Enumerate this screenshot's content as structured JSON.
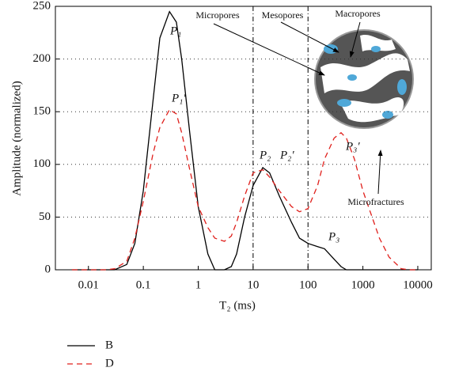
{
  "chart_data": {
    "type": "line",
    "xlabel": "T₂ (ms)",
    "ylabel": "Amplitude (normalized)",
    "xscale": "log",
    "xlim": [
      0.0025,
      17600
    ],
    "ylim": [
      0,
      250
    ],
    "xticks": [
      0.01,
      0.1,
      1,
      10,
      100,
      1000,
      10000
    ],
    "yticks": [
      0,
      50,
      100,
      150,
      200,
      250
    ],
    "grid": true,
    "vlines": [
      10,
      100
    ],
    "x": [
      0.005,
      0.01,
      0.02,
      0.03,
      0.05,
      0.07,
      0.1,
      0.15,
      0.2,
      0.3,
      0.4,
      0.5,
      0.7,
      1,
      1.5,
      2,
      3,
      4,
      5,
      7,
      10,
      15,
      20,
      30,
      50,
      70,
      100,
      150,
      200,
      300,
      400,
      500,
      700,
      1000,
      2000,
      3000,
      5000,
      7000,
      10000
    ],
    "series": [
      {
        "name": "B",
        "color": "#000000",
        "dash": "none",
        "values": [
          0,
          0,
          0,
          0,
          5,
          25,
          75,
          160,
          220,
          245,
          235,
          200,
          130,
          60,
          15,
          0,
          0,
          3,
          15,
          50,
          80,
          97,
          92,
          70,
          45,
          30,
          25,
          22,
          20,
          10,
          3,
          0,
          0,
          0,
          0,
          0,
          0,
          0,
          0
        ]
      },
      {
        "name": "D",
        "color": "#e0201c",
        "dash": "7,5",
        "values": [
          0,
          0,
          0,
          1,
          8,
          30,
          65,
          110,
          135,
          152,
          148,
          130,
          95,
          60,
          40,
          30,
          27,
          32,
          45,
          70,
          92,
          95,
          88,
          75,
          60,
          55,
          58,
          80,
          105,
          125,
          130,
          125,
          105,
          75,
          30,
          12,
          1,
          0,
          0
        ]
      }
    ],
    "peak_labels": [
      {
        "text": "P₁",
        "color": "#4fa8d8"
      },
      {
        "text": "P₁′",
        "color": "#2eaa2e"
      },
      {
        "text": "P₂",
        "color": "#4fa8d8"
      },
      {
        "text": "P₂′",
        "color": "#2eaa2e"
      },
      {
        "text": "P₃",
        "color": "#4fa8d8"
      },
      {
        "text": "P₃′",
        "color": "#2eaa2e"
      }
    ],
    "pore_labels": [
      "Micropores",
      "Mesopores",
      "Macropores",
      "Microfractures"
    ],
    "legend": "bottom-left"
  }
}
